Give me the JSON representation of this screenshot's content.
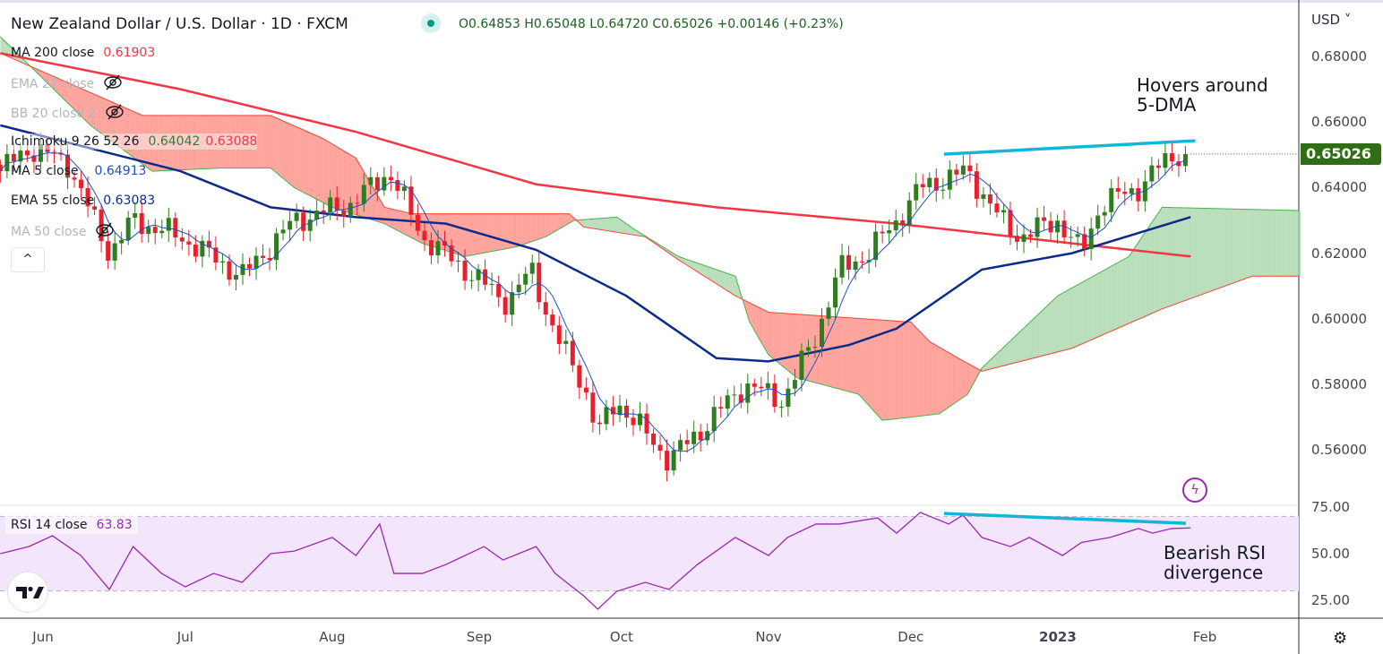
{
  "header": {
    "symbol_title": "New Zealand Dollar / U.S. Dollar · 1D · FXCM",
    "ohlc": "O0.64853 H0.65048 L0.64720 C0.65026 +0.00146 (+0.23%)"
  },
  "legend": {
    "ma200": {
      "label": "MA 200 close",
      "value": "0.61903"
    },
    "ema21": {
      "label": "EMA 21 close"
    },
    "bb20": {
      "label": "BB 20 close 2"
    },
    "ichimoku": {
      "label": "Ichimoku 9 26 52 26",
      "value_a": "0.64042",
      "value_b": "0.63088"
    },
    "ma5": {
      "label": "MA 5 close",
      "value": "0.64913"
    },
    "ema55": {
      "label": "EMA 55 close",
      "value": "0.63083"
    },
    "ma50": {
      "label": "MA 50 close"
    },
    "collapse": "^"
  },
  "rsi_legend": {
    "label": "RSI 14 close",
    "value": "63.83"
  },
  "annotations": {
    "price_note_1": "Hovers around",
    "price_note_2": "5-DMA",
    "rsi_note_1": "Bearish RSI",
    "rsi_note_2": "divergence"
  },
  "axis": {
    "currency": "USD ˅",
    "last_price": "0.65026",
    "gear": "⚙",
    "bolt": "ϟ"
  },
  "colors": {
    "up": "#2f7d1f",
    "down": "#e8202b",
    "ma200": "#f23645",
    "ma50": "#0d2a8a",
    "ma5": "#1e4fc2",
    "span_a": "#4caf50",
    "span_b": "#f44336",
    "cloud_up": "#a5d6a7",
    "cloud_down": "#ff8a80",
    "trendline": "#13b6d6",
    "rsi": "#9c27b0"
  },
  "chart_data": {
    "type": "candlestick",
    "title": "NZD/USD Daily",
    "x_unit": "days since 2022-06-01",
    "price_ticks": [
      "0.68000",
      "0.66000",
      "0.64000",
      "0.62000",
      "0.60000",
      "0.58000",
      "0.56000"
    ],
    "price_tick_values": [
      0.68,
      0.66,
      0.64,
      0.62,
      0.6,
      0.58,
      0.56
    ],
    "rsi_ticks": [
      "75.00",
      "50.00",
      "25.00"
    ],
    "rsi_tick_values": [
      75,
      50,
      25
    ],
    "time_ticks": [
      {
        "label": "Jun",
        "day": 0
      },
      {
        "label": "Jul",
        "day": 30
      },
      {
        "label": "Aug",
        "day": 61
      },
      {
        "label": "Sep",
        "day": 92
      },
      {
        "label": "Oct",
        "day": 122
      },
      {
        "label": "Nov",
        "day": 153
      },
      {
        "label": "Dec",
        "day": 183
      },
      {
        "label": "2023",
        "day": 214
      },
      {
        "label": "Feb",
        "day": 245
      }
    ],
    "ylim": [
      0.548,
      0.686
    ],
    "close_path": [
      [
        -9,
        0.645
      ],
      [
        -3,
        0.652
      ],
      [
        5,
        0.648
      ],
      [
        14,
        0.62
      ],
      [
        19,
        0.63
      ],
      [
        29,
        0.625
      ],
      [
        42,
        0.613
      ],
      [
        53,
        0.63
      ],
      [
        65,
        0.635
      ],
      [
        73,
        0.645
      ],
      [
        80,
        0.625
      ],
      [
        89,
        0.615
      ],
      [
        98,
        0.605
      ],
      [
        103,
        0.615
      ],
      [
        108,
        0.595
      ],
      [
        114,
        0.58
      ],
      [
        117,
        0.565
      ],
      [
        121,
        0.575
      ],
      [
        127,
        0.565
      ],
      [
        132,
        0.557
      ],
      [
        138,
        0.565
      ],
      [
        148,
        0.58
      ],
      [
        156,
        0.575
      ],
      [
        163,
        0.595
      ],
      [
        168,
        0.615
      ],
      [
        174,
        0.62
      ],
      [
        180,
        0.63
      ],
      [
        185,
        0.64
      ],
      [
        195,
        0.645
      ],
      [
        202,
        0.63
      ],
      [
        206,
        0.625
      ],
      [
        214,
        0.63
      ],
      [
        219,
        0.62
      ],
      [
        223,
        0.635
      ],
      [
        231,
        0.64
      ],
      [
        238,
        0.65
      ],
      [
        242,
        0.65026
      ]
    ],
    "ma200": [
      [
        -9,
        0.681
      ],
      [
        29,
        0.67
      ],
      [
        66,
        0.657
      ],
      [
        104,
        0.641
      ],
      [
        142,
        0.634
      ],
      [
        180,
        0.629
      ],
      [
        217,
        0.623
      ],
      [
        242,
        0.619
      ]
    ],
    "ma50": [
      [
        -9,
        0.659
      ],
      [
        10,
        0.652
      ],
      [
        29,
        0.645
      ],
      [
        48,
        0.634
      ],
      [
        66,
        0.631
      ],
      [
        85,
        0.629
      ],
      [
        104,
        0.621
      ],
      [
        123,
        0.607
      ],
      [
        142,
        0.588
      ],
      [
        153,
        0.587
      ],
      [
        170,
        0.592
      ],
      [
        180,
        0.597
      ],
      [
        198,
        0.615
      ],
      [
        217,
        0.62
      ],
      [
        242,
        0.631
      ]
    ],
    "span_a": [
      [
        -9,
        0.686
      ],
      [
        10,
        0.659
      ],
      [
        23,
        0.645
      ],
      [
        38,
        0.646
      ],
      [
        48,
        0.646
      ],
      [
        53,
        0.64
      ],
      [
        61,
        0.634
      ],
      [
        72,
        0.629
      ],
      [
        80,
        0.623
      ],
      [
        89,
        0.619
      ],
      [
        100,
        0.622
      ],
      [
        106,
        0.625
      ],
      [
        112,
        0.63
      ],
      [
        121,
        0.631
      ],
      [
        125,
        0.627
      ],
      [
        134,
        0.619
      ],
      [
        146,
        0.613
      ],
      [
        149,
        0.599
      ],
      [
        153,
        0.589
      ],
      [
        159,
        0.582
      ],
      [
        172,
        0.577
      ],
      [
        177,
        0.569
      ],
      [
        189,
        0.571
      ],
      [
        195,
        0.577
      ],
      [
        198,
        0.585
      ],
      [
        214,
        0.607
      ],
      [
        229,
        0.619
      ],
      [
        236,
        0.634
      ],
      [
        265,
        0.633
      ]
    ],
    "span_b": [
      [
        -9,
        0.681
      ],
      [
        21,
        0.662
      ],
      [
        48,
        0.662
      ],
      [
        59,
        0.655
      ],
      [
        66,
        0.649
      ],
      [
        72,
        0.634
      ],
      [
        78,
        0.632
      ],
      [
        111,
        0.632
      ],
      [
        114,
        0.628
      ],
      [
        127,
        0.625
      ],
      [
        134,
        0.618
      ],
      [
        146,
        0.607
      ],
      [
        153,
        0.602
      ],
      [
        183,
        0.599
      ],
      [
        187,
        0.593
      ],
      [
        193,
        0.588
      ],
      [
        198,
        0.584
      ],
      [
        217,
        0.591
      ],
      [
        236,
        0.603
      ],
      [
        255,
        0.613
      ],
      [
        265,
        0.613
      ]
    ],
    "price_trendline": [
      [
        190,
        0.6502
      ],
      [
        243,
        0.6543
      ]
    ],
    "rsi": [
      [
        -9,
        50
      ],
      [
        -3,
        53.8
      ],
      [
        2,
        59.6
      ],
      [
        8,
        49
      ],
      [
        14,
        30.8
      ],
      [
        19,
        53.8
      ],
      [
        25,
        39.4
      ],
      [
        30,
        32.2
      ],
      [
        36,
        39.4
      ],
      [
        42,
        34.6
      ],
      [
        48,
        50
      ],
      [
        53,
        51.4
      ],
      [
        61,
        58.7
      ],
      [
        66,
        49
      ],
      [
        71,
        65.9
      ],
      [
        74,
        39.4
      ],
      [
        80,
        39.4
      ],
      [
        85,
        44.2
      ],
      [
        93,
        53.8
      ],
      [
        97,
        46.6
      ],
      [
        104,
        53.8
      ],
      [
        108,
        39.4
      ],
      [
        114,
        27.4
      ],
      [
        117,
        20.2
      ],
      [
        121,
        29.8
      ],
      [
        127,
        34.6
      ],
      [
        132,
        30.8
      ],
      [
        138,
        44.2
      ],
      [
        146,
        58.7
      ],
      [
        153,
        49
      ],
      [
        157,
        58.7
      ],
      [
        163,
        65.9
      ],
      [
        168,
        65.9
      ],
      [
        176,
        69.2
      ],
      [
        180,
        61
      ],
      [
        185,
        72.1
      ],
      [
        191,
        65.9
      ],
      [
        194,
        70.7
      ],
      [
        198,
        58.7
      ],
      [
        204,
        53.8
      ],
      [
        208,
        58.7
      ],
      [
        215,
        49
      ],
      [
        219,
        56
      ],
      [
        225,
        58.7
      ],
      [
        231,
        63.5
      ],
      [
        234,
        61
      ],
      [
        238,
        63.5
      ],
      [
        242,
        63.83
      ]
    ],
    "rsi_trendline": [
      [
        190,
        71.6
      ],
      [
        241,
        66.3
      ]
    ],
    "rsi_bands": [
      70,
      30
    ]
  }
}
